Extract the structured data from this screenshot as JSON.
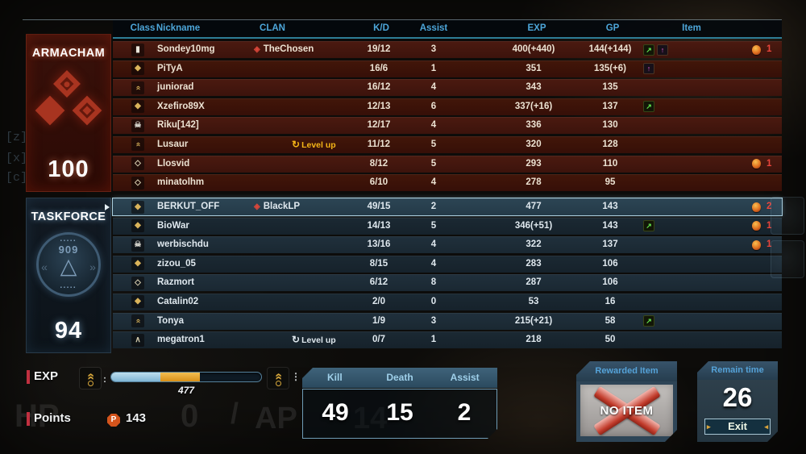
{
  "table": {
    "columns": [
      "Class",
      "Nickname",
      "CLAN",
      "K/D",
      "Assist",
      "EXP",
      "GP",
      "Item"
    ]
  },
  "teams": [
    {
      "name": "ARMACHAM",
      "score": "100",
      "rows": [
        {
          "rank": "bar",
          "name": "Sondey10mg",
          "clan": "TheChosen",
          "kd": "19/12",
          "assist": "3",
          "exp": "400(+440)",
          "gp": "144(+144)",
          "boosts": [
            "exp",
            "gp"
          ],
          "item": "1"
        },
        {
          "rank": "drop",
          "name": "PiTyA",
          "kd": "16/6",
          "assist": "1",
          "exp": "351",
          "gp": "135(+6)",
          "boosts": [
            "gp"
          ]
        },
        {
          "rank": "chev",
          "name": "juniorad",
          "kd": "16/12",
          "assist": "4",
          "exp": "343",
          "gp": "135"
        },
        {
          "rank": "drop",
          "name": "Xzefiro89X",
          "kd": "12/13",
          "assist": "6",
          "exp": "337(+16)",
          "gp": "137",
          "boosts": [
            "exp"
          ]
        },
        {
          "rank": "skull",
          "name": "Riku[142]",
          "kd": "12/17",
          "assist": "4",
          "exp": "336",
          "gp": "130"
        },
        {
          "rank": "chev",
          "name": "Lusaur",
          "levelup": true,
          "kd": "11/12",
          "assist": "5",
          "exp": "320",
          "gp": "128"
        },
        {
          "rank": "dropo",
          "name": "Llosvid",
          "kd": "8/12",
          "assist": "5",
          "exp": "293",
          "gp": "110",
          "item": "1"
        },
        {
          "rank": "dropo",
          "name": "minatolhm",
          "kd": "6/10",
          "assist": "4",
          "exp": "278",
          "gp": "95"
        }
      ]
    },
    {
      "name": "TASKFORCE",
      "score": "94",
      "emblem_number": "909",
      "rows": [
        {
          "rank": "drop",
          "name": "BERKUT_OFF",
          "clan": "BlackLP",
          "kd": "49/15",
          "assist": "2",
          "exp": "477",
          "gp": "143",
          "item": "2",
          "highlight": true
        },
        {
          "rank": "drop",
          "name": "BioWar",
          "kd": "14/13",
          "assist": "5",
          "exp": "346(+51)",
          "gp": "143",
          "boosts": [
            "exp"
          ],
          "item": "1"
        },
        {
          "rank": "skull",
          "name": "werbischdu",
          "kd": "13/16",
          "assist": "4",
          "exp": "322",
          "gp": "137",
          "item": "1"
        },
        {
          "rank": "drop",
          "name": "zizou_05",
          "kd": "8/15",
          "assist": "4",
          "exp": "283",
          "gp": "106"
        },
        {
          "rank": "dropo",
          "name": "Razmort",
          "kd": "6/12",
          "assist": "8",
          "exp": "287",
          "gp": "106"
        },
        {
          "rank": "drop",
          "name": "Catalin02",
          "kd": "2/0",
          "assist": "0",
          "exp": "53",
          "gp": "16"
        },
        {
          "rank": "chev",
          "name": "Tonya",
          "kd": "1/9",
          "assist": "3",
          "exp": "215(+21)",
          "gp": "58",
          "boosts": [
            "exp"
          ]
        },
        {
          "rank": "chevt",
          "name": "megatron1",
          "levelup": true,
          "kd": "0/7",
          "assist": "1",
          "exp": "218",
          "gp": "50"
        }
      ]
    }
  ],
  "labels": {
    "level_up": "Level up"
  },
  "icons": {
    "ranks": {
      "bar": "▮",
      "drop": "◆",
      "dropo": "◇",
      "chev": "«",
      "chevt": "∧",
      "skull": "☠"
    },
    "clan_diamond": "◈",
    "level_up_arrow": "↻",
    "exp_up": "↗",
    "gp_up": "↑",
    "taskforce_triangle": "△",
    "taskforce_dots": "▪▪▪▪▪",
    "wing_left": "«",
    "wing_right": "»",
    "rank_chevron": "«",
    "points_p": "P"
  },
  "hud": {
    "exp_label": "EXP",
    "exp_value": "477",
    "exp_bar": {
      "blue_pct": 33,
      "orange_pct": 26
    },
    "left_colon": ":",
    "right_colon": "⋮",
    "points_label": "Points",
    "points_value": "143",
    "kda": {
      "labels": [
        "Kill",
        "Death",
        "Assist"
      ],
      "values": [
        "49",
        "15",
        "2"
      ]
    },
    "reward": {
      "title": "Rewarded Item",
      "text": "NO ITEM"
    },
    "remain": {
      "title": "Remain time",
      "value": "26",
      "exit": "Exit"
    },
    "ghost": {
      "hp_label": "HP",
      "hp_value": "0",
      "sep": "/",
      "ap_label": "AP",
      "ap_value": "14"
    },
    "keys": [
      "[z]",
      "[x]",
      "[c]"
    ]
  },
  "colors": {
    "header_blue": "#4da6d9",
    "team_red": "#a83420",
    "team_blue": "#3f5b73",
    "gold": "#f5b517",
    "item_count_red": "#e8453c",
    "bar_blue": "#7fb4d4",
    "bar_orange": "#d89018"
  }
}
